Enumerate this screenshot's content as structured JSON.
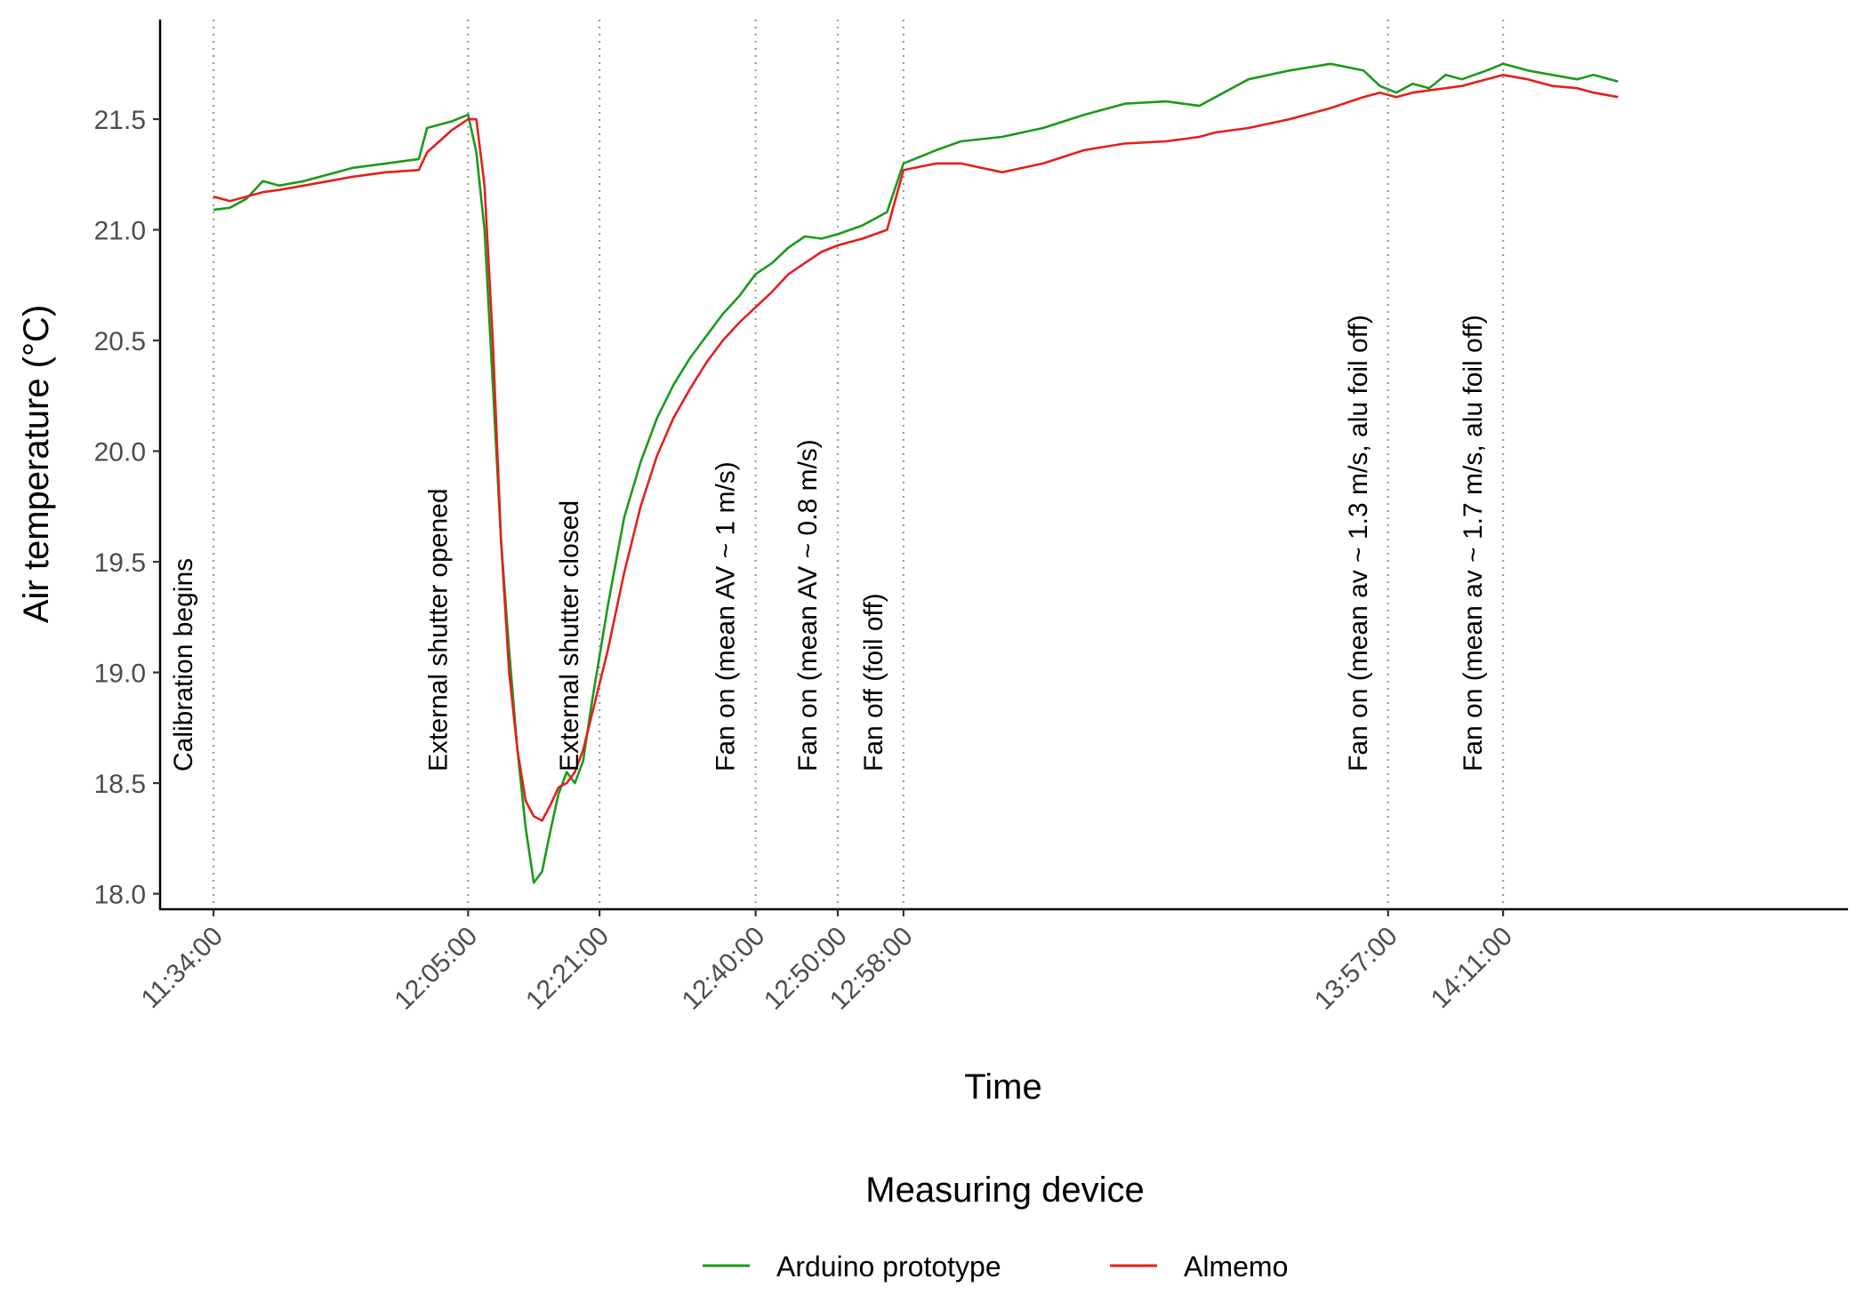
{
  "chart_data": {
    "type": "line",
    "title": "",
    "xlabel": "Time",
    "ylabel": "Air temperature (°C)",
    "xlim": [
      "11:27:30",
      "14:53:00"
    ],
    "ylim": [
      17.93,
      21.95
    ],
    "grid": "off",
    "x_ticks": [
      "11:34:00",
      "12:05:00",
      "12:21:00",
      "12:40:00",
      "12:50:00",
      "12:58:00",
      "13:57:00",
      "14:11:00"
    ],
    "y_ticks": [
      "18.0",
      "18.5",
      "19.0",
      "19.5",
      "20.0",
      "20.5",
      "21.0",
      "21.5"
    ],
    "events": [
      {
        "time": "11:34:00",
        "label": "Calibration begins"
      },
      {
        "time": "12:05:00",
        "label": "External shutter opened"
      },
      {
        "time": "12:21:00",
        "label": "External shutter closed"
      },
      {
        "time": "12:40:00",
        "label": "Fan on (mean AV ~ 1 m/s)"
      },
      {
        "time": "12:50:00",
        "label": "Fan on (mean AV ~ 0.8 m/s)"
      },
      {
        "time": "12:58:00",
        "label": "Fan off (foil off)"
      },
      {
        "time": "13:57:00",
        "label": "Fan on (mean av ~ 1.3 m/s, alu foil off)"
      },
      {
        "time": "14:11:00",
        "label": "Fan on (mean av ~ 1.7 m/s, alu foil off)"
      }
    ],
    "legend": {
      "title": "Measuring device",
      "position": "bottom"
    },
    "series": [
      {
        "name": "Arduino prototype",
        "color": "#1a9a1a",
        "x": [
          "11:34:00",
          "11:36:00",
          "11:38:00",
          "11:40:00",
          "11:42:00",
          "11:45:00",
          "11:48:00",
          "11:51:00",
          "11:55:00",
          "11:59:00",
          "12:00:00",
          "12:03:00",
          "12:05:00",
          "12:06:00",
          "12:07:00",
          "12:08:00",
          "12:09:00",
          "12:10:00",
          "12:11:00",
          "12:12:00",
          "12:13:00",
          "12:14:00",
          "12:15:00",
          "12:16:00",
          "12:17:00",
          "12:18:00",
          "12:19:00",
          "12:20:00",
          "12:22:00",
          "12:24:00",
          "12:26:00",
          "12:28:00",
          "12:30:00",
          "12:32:00",
          "12:34:00",
          "12:36:00",
          "12:38:00",
          "12:40:00",
          "12:42:00",
          "12:44:00",
          "12:46:00",
          "12:48:00",
          "12:50:00",
          "12:53:00",
          "12:56:00",
          "12:58:00",
          "13:02:00",
          "13:05:00",
          "13:10:00",
          "13:15:00",
          "13:20:00",
          "13:25:00",
          "13:30:00",
          "13:34:00",
          "13:36:00",
          "13:40:00",
          "13:45:00",
          "13:50:00",
          "13:54:00",
          "13:56:00",
          "13:58:00",
          "14:00:00",
          "14:02:00",
          "14:04:00",
          "14:06:00",
          "14:09:00",
          "14:11:00",
          "14:14:00",
          "14:17:00",
          "14:20:00",
          "14:22:00",
          "14:25:00"
        ],
        "y": [
          21.09,
          21.1,
          21.14,
          21.22,
          21.2,
          21.22,
          21.25,
          21.28,
          21.3,
          21.32,
          21.46,
          21.49,
          21.52,
          21.35,
          21.0,
          20.3,
          19.6,
          19.1,
          18.65,
          18.3,
          18.05,
          18.1,
          18.28,
          18.45,
          18.55,
          18.5,
          18.6,
          18.85,
          19.3,
          19.7,
          19.95,
          20.15,
          20.3,
          20.42,
          20.52,
          20.62,
          20.7,
          20.8,
          20.85,
          20.92,
          20.97,
          20.96,
          20.98,
          21.02,
          21.08,
          21.3,
          21.36,
          21.4,
          21.42,
          21.46,
          21.52,
          21.57,
          21.58,
          21.56,
          21.6,
          21.68,
          21.72,
          21.75,
          21.72,
          21.65,
          21.62,
          21.66,
          21.64,
          21.7,
          21.68,
          21.72,
          21.75,
          21.72,
          21.7,
          21.68,
          21.7,
          21.67
        ]
      },
      {
        "name": "Almemo",
        "color": "#e3201b",
        "x": [
          "11:34:00",
          "11:36:00",
          "11:38:00",
          "11:40:00",
          "11:42:00",
          "11:45:00",
          "11:48:00",
          "11:51:00",
          "11:55:00",
          "11:59:00",
          "12:00:00",
          "12:03:00",
          "12:05:00",
          "12:06:00",
          "12:07:00",
          "12:08:00",
          "12:09:00",
          "12:10:00",
          "12:11:00",
          "12:12:00",
          "12:13:00",
          "12:14:00",
          "12:15:00",
          "12:16:00",
          "12:17:00",
          "12:18:00",
          "12:19:00",
          "12:20:00",
          "12:22:00",
          "12:24:00",
          "12:26:00",
          "12:28:00",
          "12:30:00",
          "12:32:00",
          "12:34:00",
          "12:36:00",
          "12:38:00",
          "12:40:00",
          "12:42:00",
          "12:44:00",
          "12:46:00",
          "12:48:00",
          "12:50:00",
          "12:53:00",
          "12:56:00",
          "12:58:00",
          "13:02:00",
          "13:05:00",
          "13:10:00",
          "13:15:00",
          "13:20:00",
          "13:25:00",
          "13:30:00",
          "13:34:00",
          "13:36:00",
          "13:40:00",
          "13:45:00",
          "13:50:00",
          "13:54:00",
          "13:56:00",
          "13:58:00",
          "14:00:00",
          "14:02:00",
          "14:04:00",
          "14:06:00",
          "14:09:00",
          "14:11:00",
          "14:14:00",
          "14:17:00",
          "14:20:00",
          "14:22:00",
          "14:25:00"
        ],
        "y": [
          21.15,
          21.13,
          21.15,
          21.17,
          21.18,
          21.2,
          21.22,
          21.24,
          21.26,
          21.27,
          21.35,
          21.45,
          21.5,
          21.5,
          21.2,
          20.5,
          19.6,
          19.0,
          18.65,
          18.42,
          18.35,
          18.33,
          18.4,
          18.48,
          18.5,
          18.55,
          18.65,
          18.8,
          19.1,
          19.45,
          19.75,
          19.98,
          20.15,
          20.28,
          20.4,
          20.5,
          20.58,
          20.65,
          20.72,
          20.8,
          20.85,
          20.9,
          20.93,
          20.96,
          21.0,
          21.27,
          21.3,
          21.3,
          21.26,
          21.3,
          21.36,
          21.39,
          21.4,
          21.42,
          21.44,
          21.46,
          21.5,
          21.55,
          21.6,
          21.62,
          21.6,
          21.62,
          21.63,
          21.64,
          21.65,
          21.68,
          21.7,
          21.68,
          21.65,
          21.64,
          21.62,
          21.6
        ]
      }
    ]
  }
}
